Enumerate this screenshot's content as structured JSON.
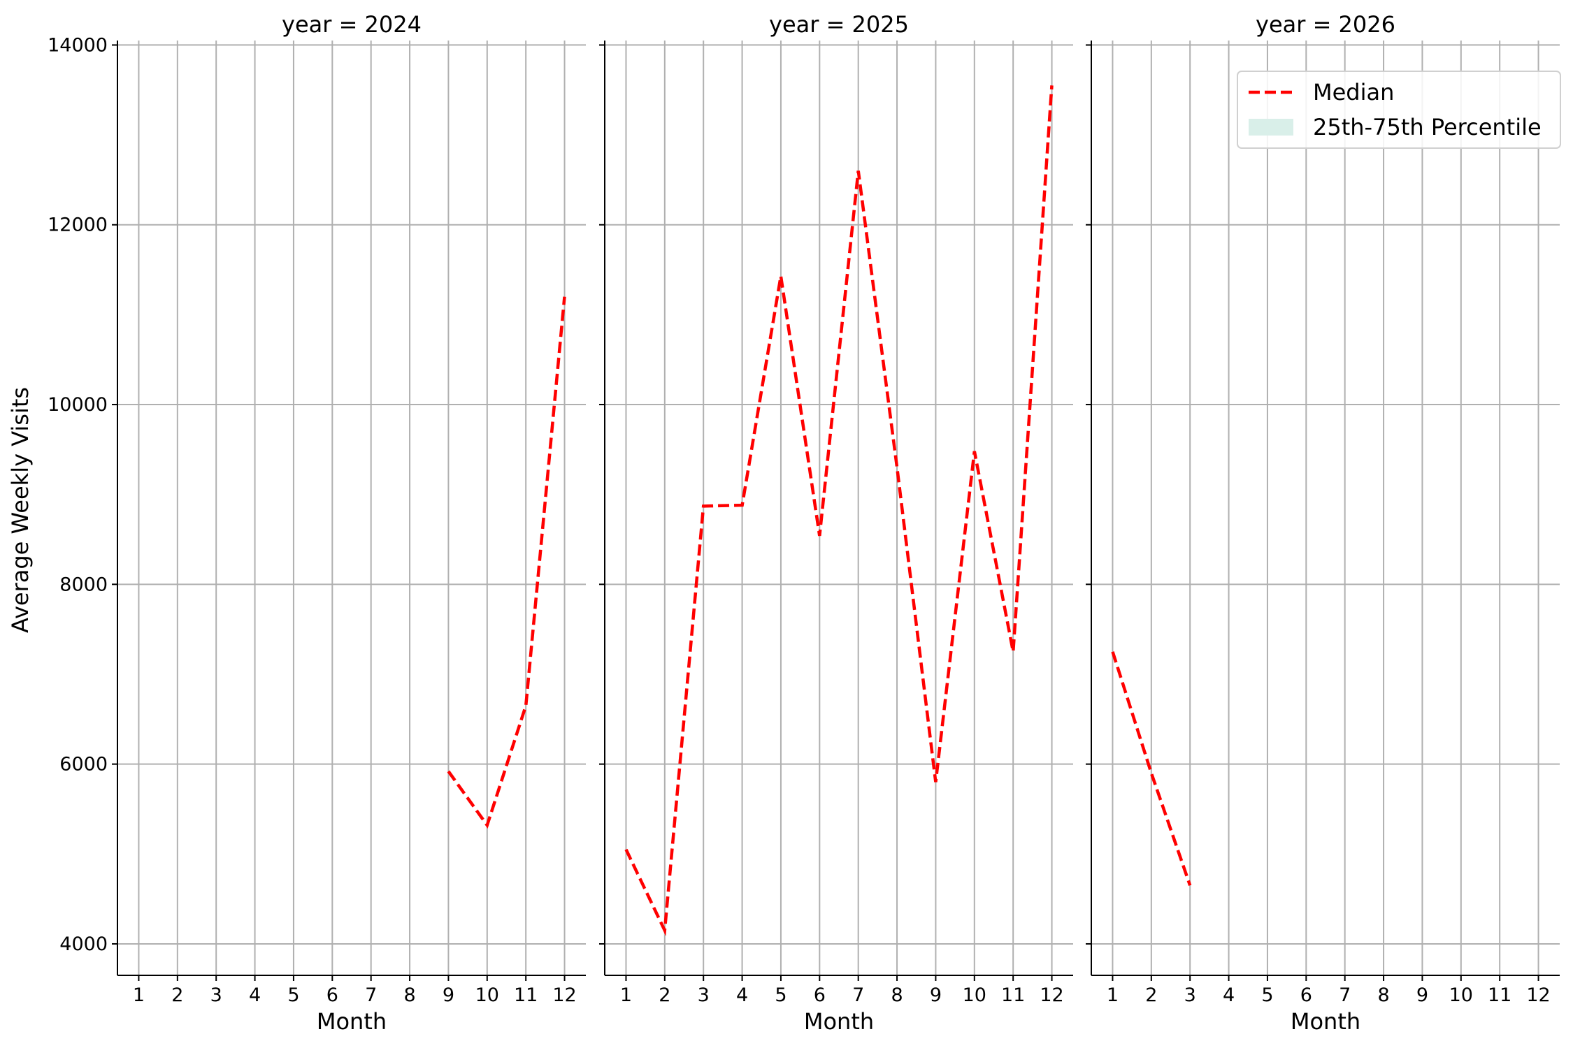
{
  "chart_data": [
    {
      "type": "line",
      "title": "year = 2024",
      "xlabel": "Month",
      "ylabel": "Average Weekly Visits",
      "x": [
        1,
        2,
        3,
        4,
        5,
        6,
        7,
        8,
        9,
        10,
        11,
        12
      ],
      "xticks": [
        "1",
        "2",
        "3",
        "4",
        "5",
        "6",
        "7",
        "8",
        "9",
        "10",
        "11",
        "12"
      ],
      "yticks": [
        "4000",
        "6000",
        "8000",
        "10000",
        "12000",
        "14000"
      ],
      "ylim": [
        3650,
        14050
      ],
      "grid": true,
      "series": [
        {
          "name": "Median",
          "style": "dashed",
          "color": "#ff0000",
          "values": [
            null,
            null,
            null,
            null,
            null,
            null,
            null,
            null,
            5920,
            5320,
            6650,
            11200
          ]
        }
      ]
    },
    {
      "type": "line",
      "title": "year = 2025",
      "xlabel": "Month",
      "ylabel": "",
      "x": [
        1,
        2,
        3,
        4,
        5,
        6,
        7,
        8,
        9,
        10,
        11,
        12
      ],
      "xticks": [
        "1",
        "2",
        "3",
        "4",
        "5",
        "6",
        "7",
        "8",
        "9",
        "10",
        "11",
        "12"
      ],
      "yticks": [],
      "ylim": [
        3650,
        14050
      ],
      "grid": true,
      "series": [
        {
          "name": "Median",
          "style": "dashed",
          "color": "#ff0000",
          "values": [
            5050,
            4150,
            8870,
            8880,
            11430,
            8540,
            12600,
            9300,
            5800,
            9480,
            7250,
            13550
          ]
        }
      ]
    },
    {
      "type": "line",
      "title": "year = 2026",
      "xlabel": "Month",
      "ylabel": "",
      "x": [
        1,
        2,
        3,
        4,
        5,
        6,
        7,
        8,
        9,
        10,
        11,
        12
      ],
      "xticks": [
        "1",
        "2",
        "3",
        "4",
        "5",
        "6",
        "7",
        "8",
        "9",
        "10",
        "11",
        "12"
      ],
      "yticks": [],
      "ylim": [
        3650,
        14050
      ],
      "grid": true,
      "series": [
        {
          "name": "Median",
          "style": "dashed",
          "color": "#ff0000",
          "values": [
            7250,
            5900,
            4650,
            null,
            null,
            null,
            null,
            null,
            null,
            null,
            null,
            null
          ]
        }
      ]
    }
  ],
  "legend": {
    "placement": "top-right",
    "entries": [
      {
        "label": "Median",
        "kind": "dashed-line",
        "color": "#ff0000"
      },
      {
        "label": "25th-75th Percentile",
        "kind": "band",
        "color": "#d9efe9"
      }
    ]
  }
}
